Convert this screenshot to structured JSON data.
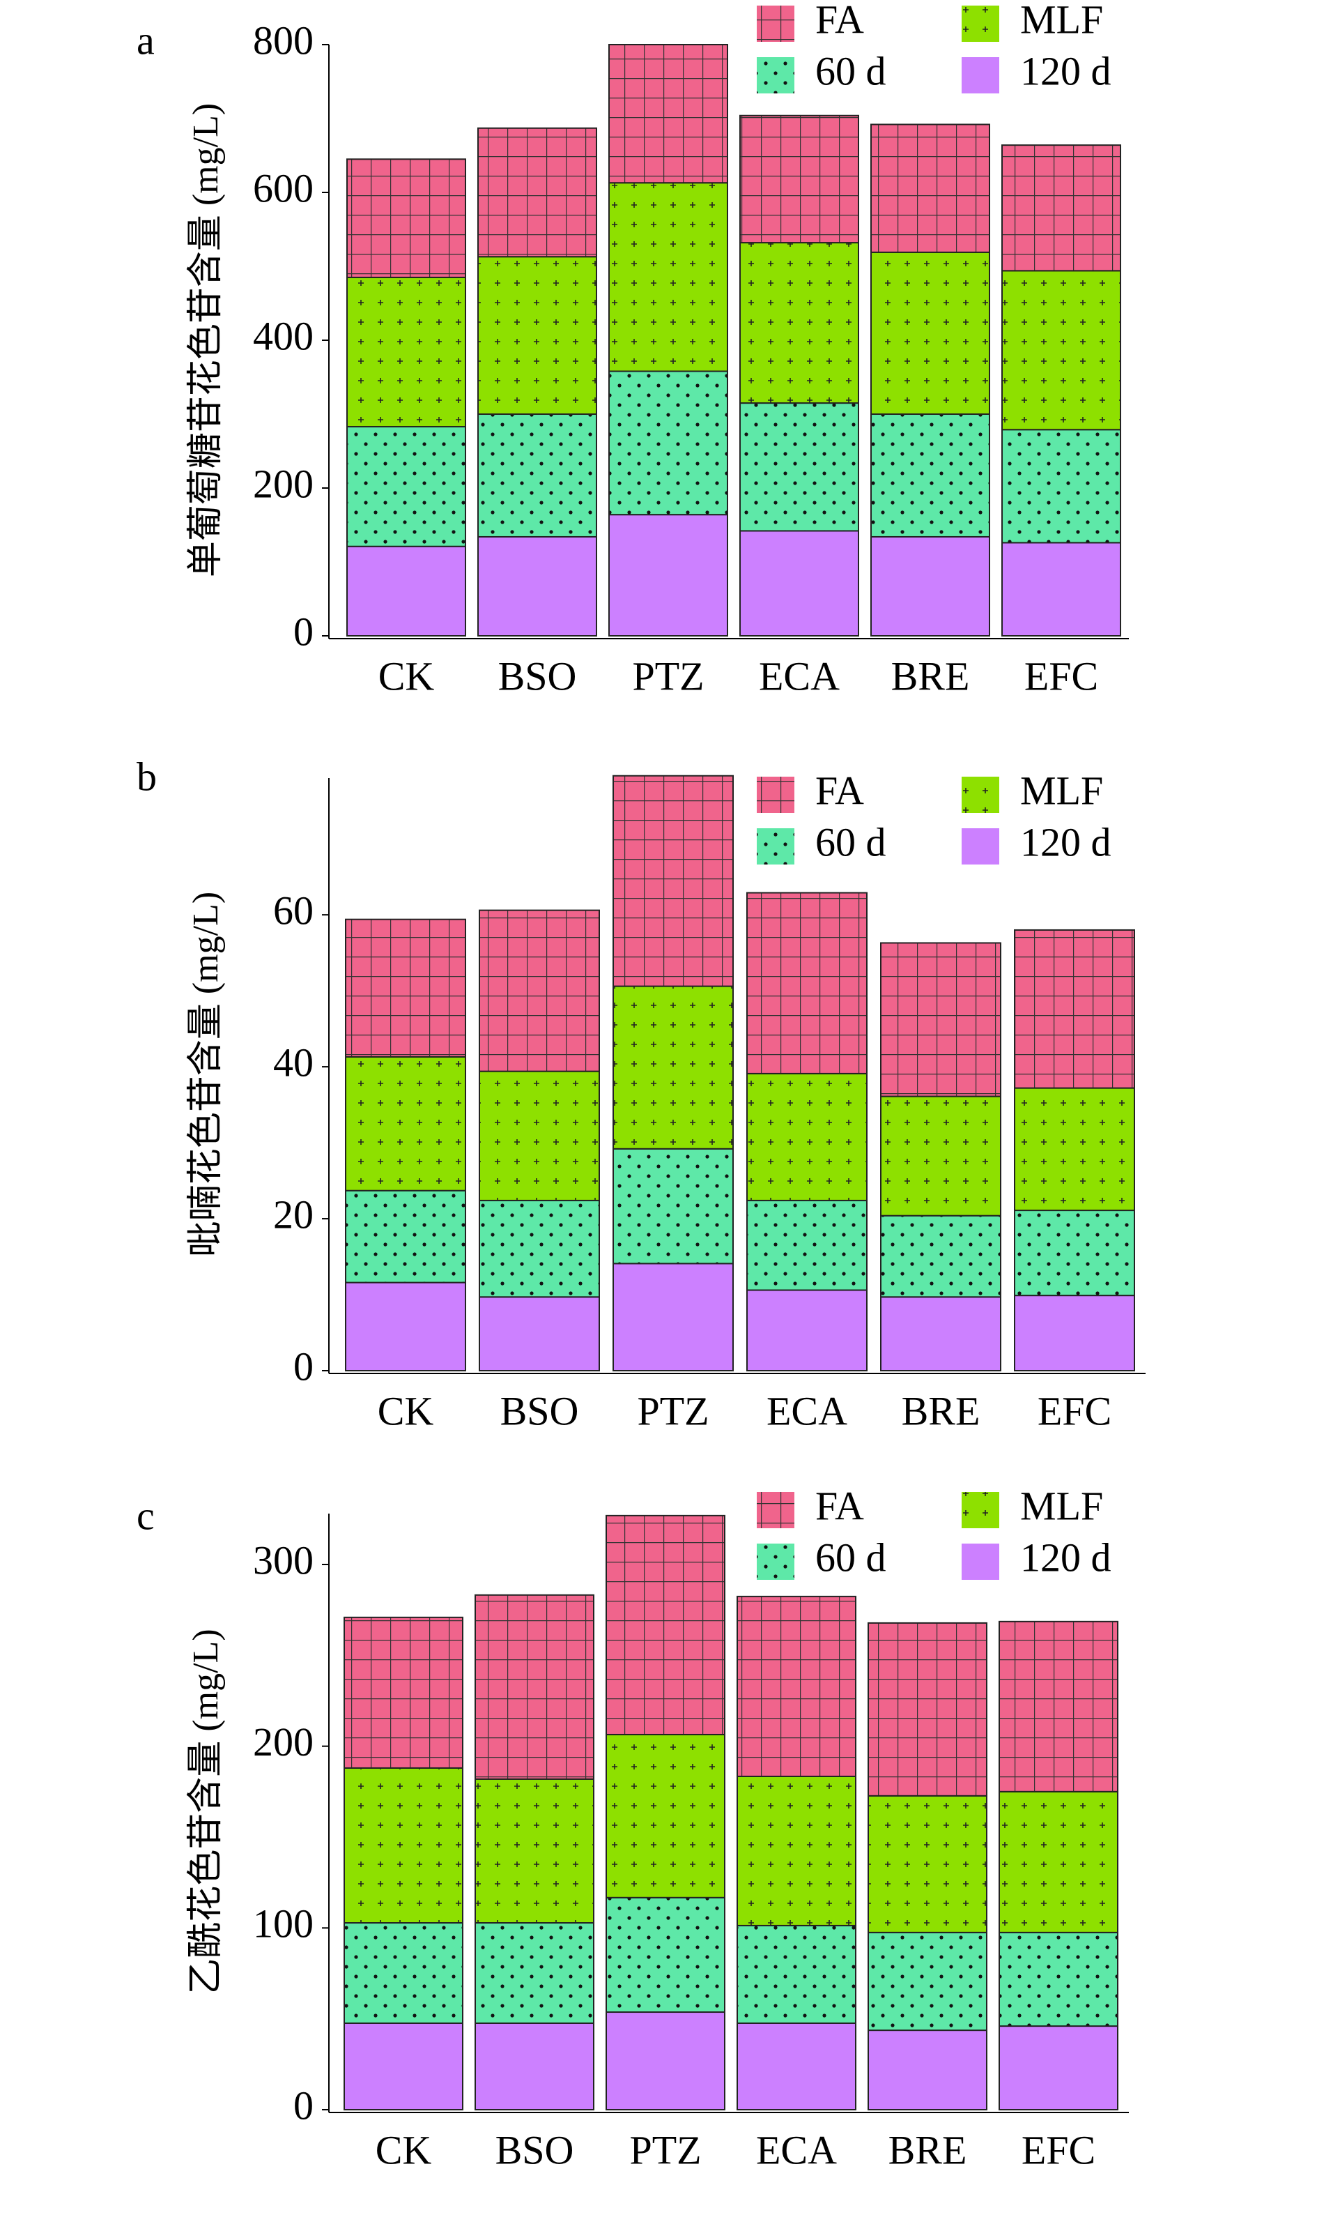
{
  "chart_data": [
    {
      "type": "bar",
      "stacked": true,
      "panel_label": "a",
      "ylabel": "单葡萄糖苷花色苷含量 (mg/L)",
      "categories": [
        "CK",
        "BSO",
        "PTZ",
        "ECA",
        "BRE",
        "EFC"
      ],
      "series": [
        {
          "name": "FA",
          "color": "#f0648c",
          "values": [
            160,
            174,
            187,
            172,
            173,
            170
          ]
        },
        {
          "name": "MLF",
          "color": "#8ee000",
          "values": [
            202,
            213,
            255,
            217,
            219,
            215
          ]
        },
        {
          "name": "60 d",
          "color": "#5ee8a8",
          "values": [
            162,
            166,
            194,
            173,
            166,
            153
          ]
        },
        {
          "name": "120 d",
          "color": "#cc80ff",
          "values": [
            121,
            134,
            164,
            142,
            134,
            126
          ]
        }
      ],
      "ylim": [
        0,
        800
      ],
      "yticks": [
        0,
        200,
        400,
        600,
        800
      ]
    },
    {
      "type": "bar",
      "stacked": true,
      "panel_label": "b",
      "ylabel": "吡喃花色苷含量 (mg/L)",
      "categories": [
        "CK",
        "BSO",
        "PTZ",
        "ECA",
        "BRE",
        "EFC"
      ],
      "series": [
        {
          "name": "FA",
          "color": "#f0648c",
          "values": [
            18.1,
            21.2,
            27.7,
            23.8,
            20.2,
            20.8
          ]
        },
        {
          "name": "MLF",
          "color": "#8ee000",
          "values": [
            17.6,
            17.0,
            21.4,
            16.7,
            15.7,
            16.1
          ]
        },
        {
          "name": "60 d",
          "color": "#5ee8a8",
          "values": [
            12.1,
            12.7,
            15.1,
            11.8,
            10.7,
            11.2
          ]
        },
        {
          "name": "120 d",
          "color": "#cc80ff",
          "values": [
            11.6,
            9.7,
            14.1,
            10.6,
            9.7,
            9.9
          ]
        }
      ],
      "ylim": [
        0,
        78
      ],
      "yticks": [
        0,
        20,
        40,
        60
      ]
    },
    {
      "type": "bar",
      "stacked": true,
      "panel_label": "c",
      "ylabel": "乙酰花色苷含量 (mg/L)",
      "categories": [
        "CK",
        "BSO",
        "PTZ",
        "ECA",
        "BRE",
        "EFC"
      ],
      "series": [
        {
          "name": "FA",
          "color": "#f0648c",
          "values": [
            82.9,
            101.3,
            120.5,
            99.0,
            95.1,
            93.6
          ]
        },
        {
          "name": "MLF",
          "color": "#8ee000",
          "values": [
            85.2,
            79.1,
            89.7,
            82.1,
            75.2,
            77.5
          ]
        },
        {
          "name": "60 d",
          "color": "#5ee8a8",
          "values": [
            55.2,
            55.2,
            63.0,
            53.7,
            53.8,
            51.5
          ]
        },
        {
          "name": "120 d",
          "color": "#cc80ff",
          "values": [
            47.6,
            47.6,
            53.7,
            47.6,
            43.7,
            46.0
          ]
        }
      ],
      "ylim": [
        0,
        328
      ],
      "yticks": [
        0,
        100,
        200,
        300
      ]
    }
  ]
}
